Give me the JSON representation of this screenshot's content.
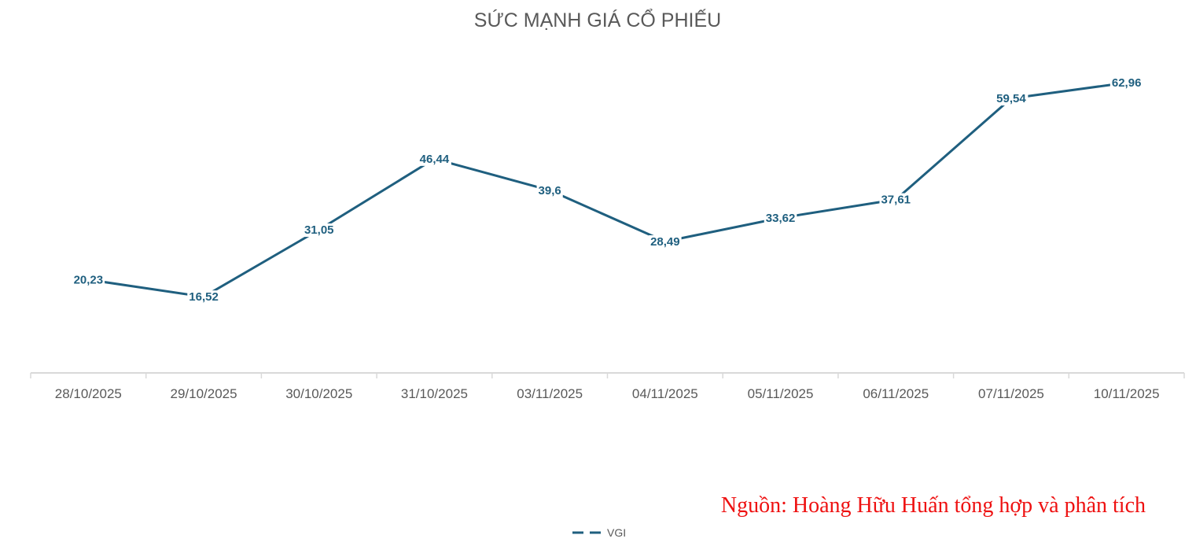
{
  "chart_data": {
    "type": "line",
    "title": "SỨC MẠNH GIÁ CỔ PHIẾU",
    "xlabel": "",
    "ylabel": "",
    "categories": [
      "28/10/2025",
      "29/10/2025",
      "30/10/2025",
      "31/10/2025",
      "03/11/2025",
      "04/11/2025",
      "05/11/2025",
      "06/11/2025",
      "07/11/2025",
      "10/11/2025"
    ],
    "series": [
      {
        "name": "VGI",
        "values": [
          20.23,
          16.52,
          31.05,
          46.44,
          39.6,
          28.49,
          33.62,
          37.61,
          59.54,
          62.96
        ],
        "labels": [
          "20,23",
          "16,52",
          "31,05",
          "46,44",
          "39,6",
          "28,49",
          "33,62",
          "37,61",
          "59,54",
          "62,96"
        ],
        "color": "#1f5f7f"
      }
    ],
    "ylim": [
      0,
      70
    ],
    "grid": false,
    "legend": "bottom-center",
    "axis_color": "#d9d9d9"
  },
  "source_note": "Nguồn: Hoàng Hữu Huấn tổng hợp và phân tích",
  "source_note_color": "#ee1111"
}
